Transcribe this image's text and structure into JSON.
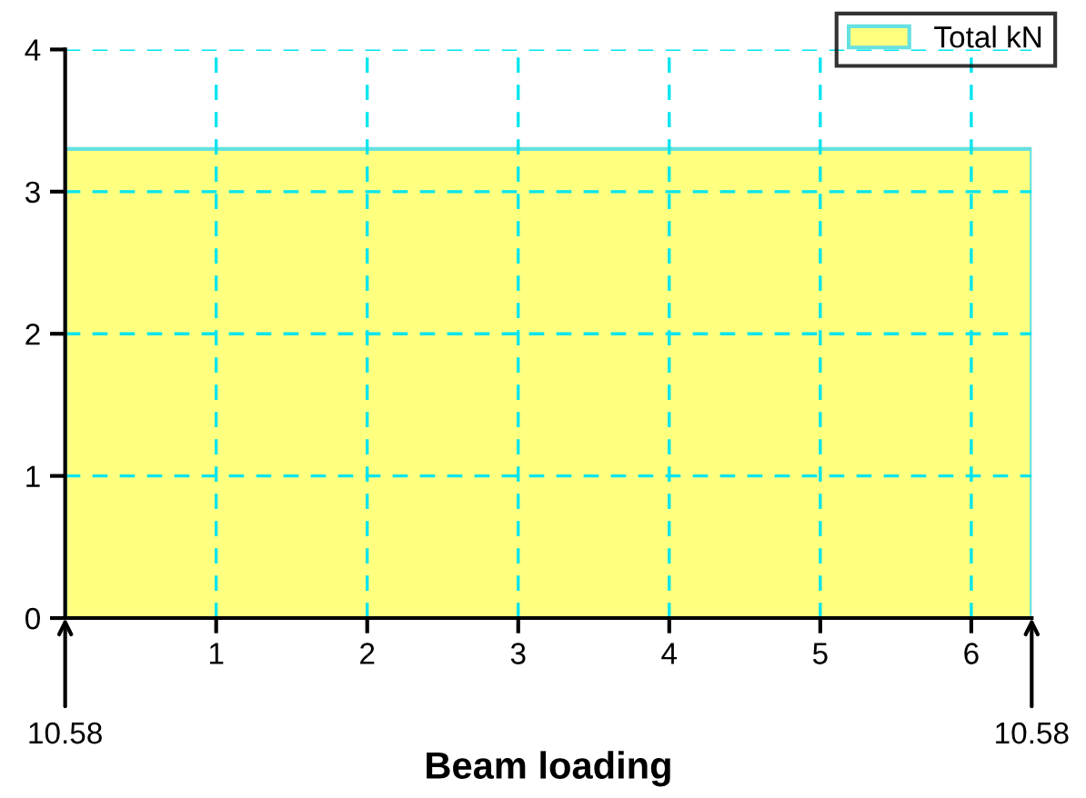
{
  "chart_data": {
    "type": "area",
    "xlabel": "Beam loading",
    "x": [
      0,
      6.4
    ],
    "series": [
      {
        "name": "Total kN",
        "color": "#ffff80",
        "values": [
          3.3,
          3.3
        ]
      }
    ],
    "xlim": [
      0,
      6.4
    ],
    "xticks": [
      1,
      2,
      3,
      4,
      5,
      6
    ],
    "ylim": [
      0,
      4
    ],
    "yticks": [
      0,
      1,
      2,
      3,
      4
    ],
    "grid": true,
    "legend": "top right",
    "annotations": [
      {
        "text": "10.58",
        "x": 0,
        "y": 0
      },
      {
        "text": "10.58",
        "x": 6.4,
        "y": 0
      }
    ]
  }
}
